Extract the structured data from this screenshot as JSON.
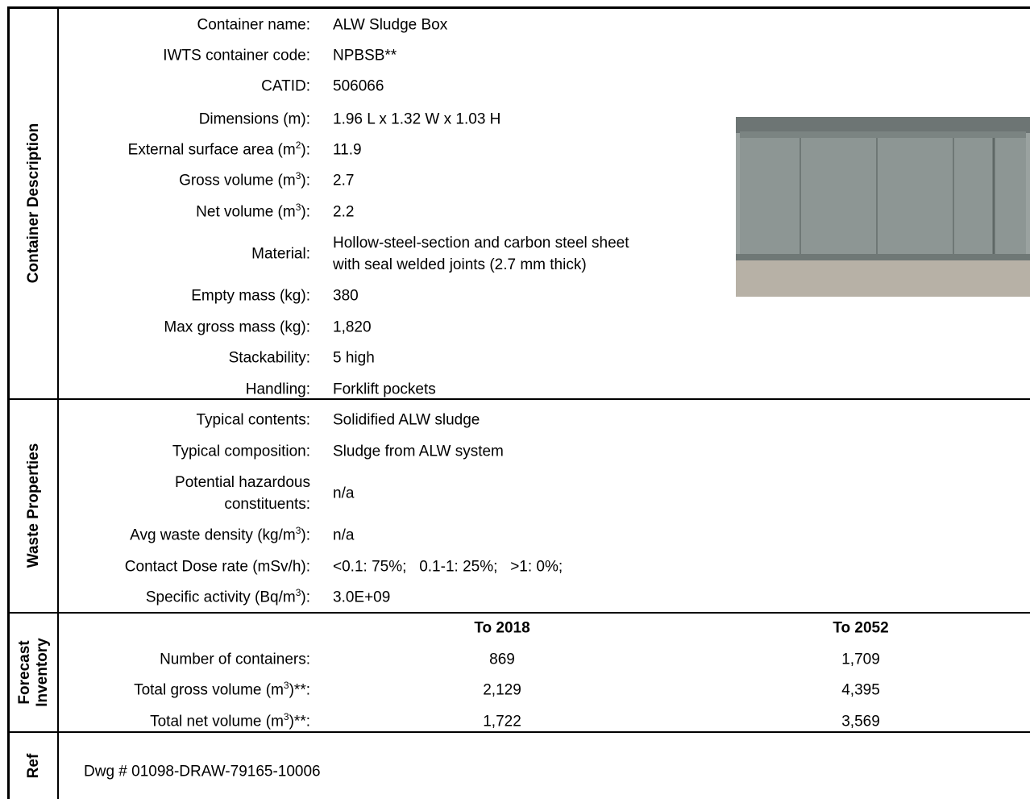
{
  "sections": [
    {
      "title": "Container Description",
      "rows": [
        {
          "label": "Container name:",
          "value": "ALW Sludge Box"
        },
        {
          "label": "IWTS container code:",
          "value": "NPBSB**"
        },
        {
          "label": "CATID:",
          "value": "506066"
        },
        {
          "label": "Dimensions (m):",
          "value": "1.96 L x 1.32 W x 1.03 H"
        },
        {
          "label": [
            "External surface area (m",
            "2",
            "):"
          ],
          "value": "11.9"
        },
        {
          "label": [
            "Gross volume (m",
            "3",
            "):"
          ],
          "value": "2.7"
        },
        {
          "label": [
            "Net volume (m",
            "3",
            "):"
          ],
          "value": "2.2"
        },
        {
          "label": "Material:",
          "value": [
            "Hollow-steel-section and carbon steel sheet",
            "with seal welded joints (2.7 mm thick)"
          ]
        },
        {
          "label": "Empty mass (kg):",
          "value": "380"
        },
        {
          "label": "Max gross mass (kg):",
          "value": "1,820"
        },
        {
          "label": "Stackability:",
          "value": "5 high"
        },
        {
          "label": "Handling:",
          "value": "Forklift pockets"
        }
      ]
    },
    {
      "title": "Waste Properties",
      "rows": [
        {
          "label": "Typical contents:",
          "value": "Solidified ALW sludge"
        },
        {
          "label": "Typical composition:",
          "value": "Sludge from ALW system"
        },
        {
          "label_lines": [
            "Potential hazardous",
            "constituents:"
          ],
          "value": "n/a"
        },
        {
          "label": [
            "Avg waste density (kg/m",
            "3",
            "):"
          ],
          "value": "n/a"
        },
        {
          "label": "Contact Dose rate (mSv/h):",
          "value": "<0.1: 75%;   0.1-1: 25%;   >1: 0%;"
        },
        {
          "label": [
            "Specific activity (Bq/m",
            "3",
            "):"
          ],
          "value": "3.0E+09"
        }
      ]
    },
    {
      "title": [
        "Forecast",
        "Inventory"
      ],
      "columns": [
        "To 2018",
        "To 2052"
      ],
      "rows": [
        {
          "label": "Number of containers:",
          "values": [
            "869",
            "1,709"
          ]
        },
        {
          "label": [
            "Total gross volume (m",
            "3",
            ")**:"
          ],
          "values": [
            "2,129",
            "4,395"
          ]
        },
        {
          "label": [
            "Total net volume (m",
            "3",
            ")**:"
          ],
          "values": [
            "1,722",
            "3,569"
          ]
        }
      ]
    },
    {
      "title": "Ref",
      "text": "Dwg # 01098-DRAW-79165-10006"
    }
  ]
}
